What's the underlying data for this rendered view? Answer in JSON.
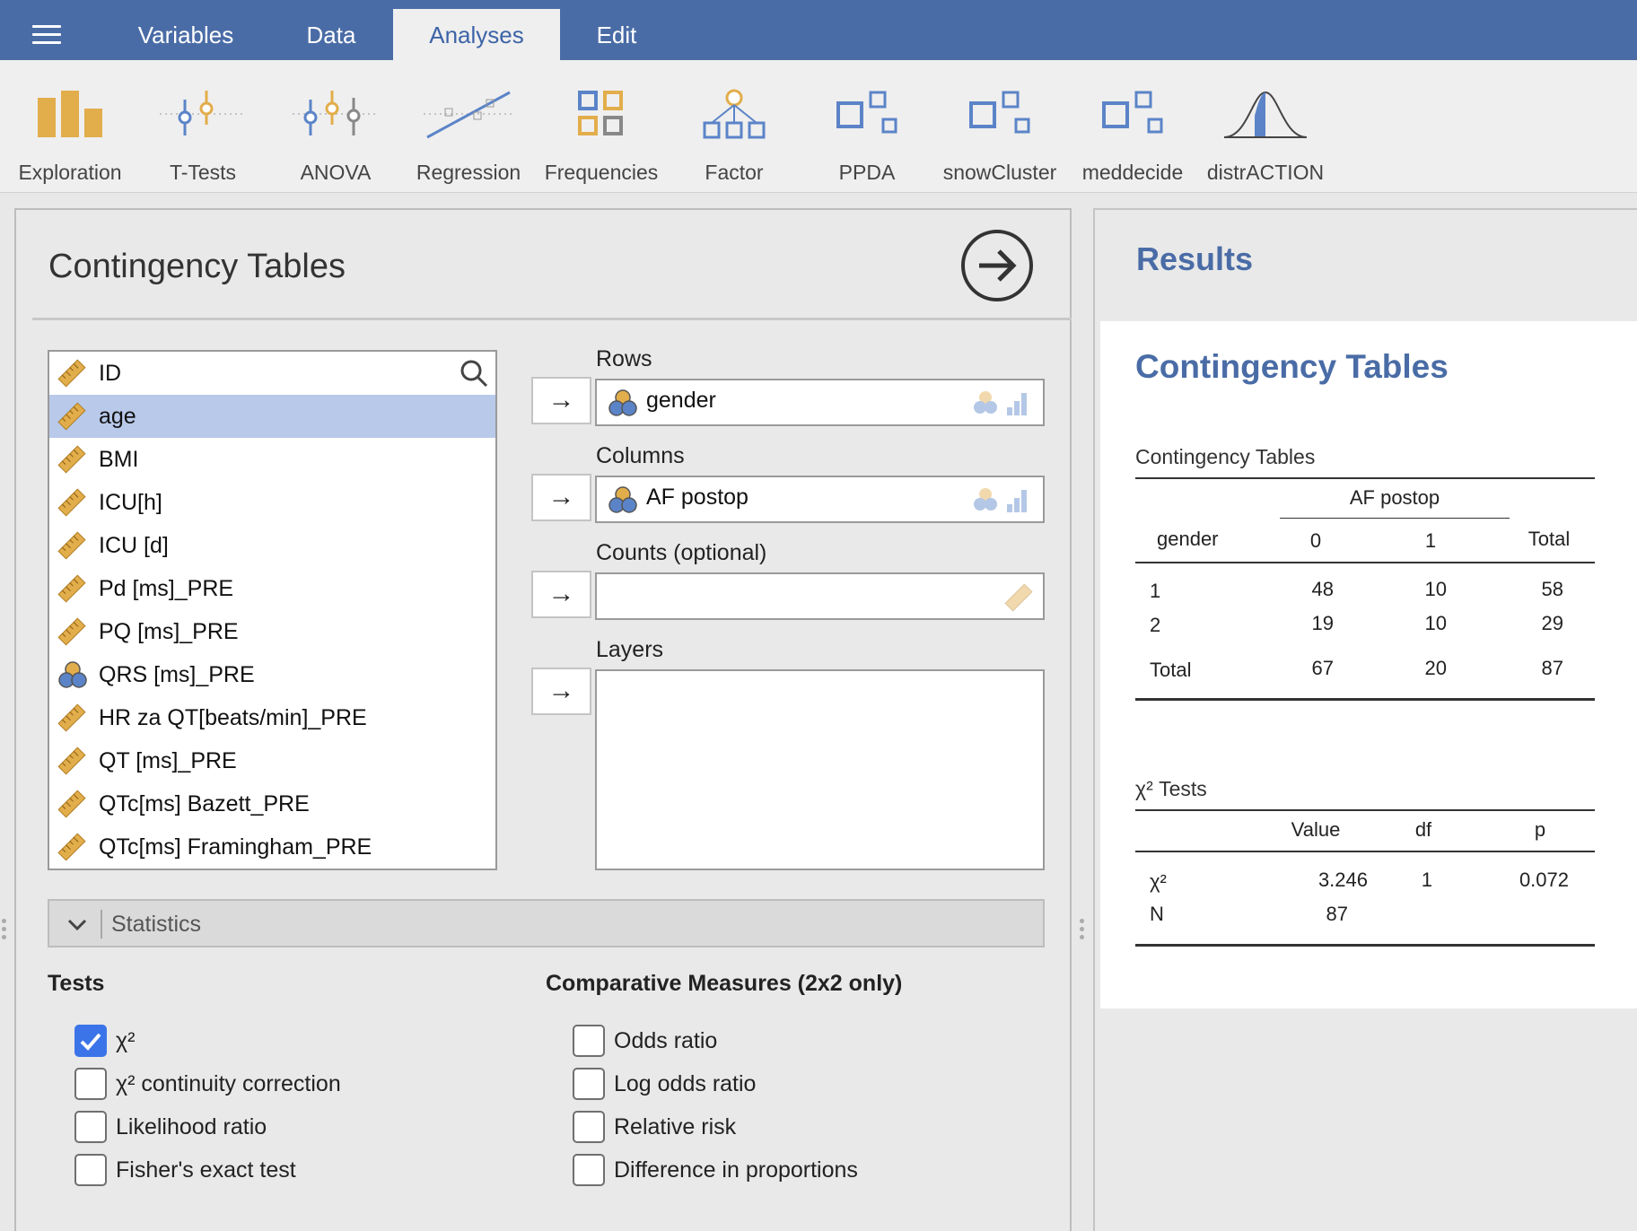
{
  "menu": {
    "tabs": [
      {
        "label": "Variables"
      },
      {
        "label": "Data"
      },
      {
        "label": "Analyses"
      },
      {
        "label": "Edit"
      }
    ]
  },
  "ribbon": {
    "buttons": [
      {
        "label": "Exploration",
        "icon": "exploration-icon"
      },
      {
        "label": "T-Tests",
        "icon": "t-tests-icon"
      },
      {
        "label": "ANOVA",
        "icon": "anova-icon"
      },
      {
        "label": "Regression",
        "icon": "regression-icon"
      },
      {
        "label": "Frequencies",
        "icon": "frequencies-icon"
      },
      {
        "label": "Factor",
        "icon": "factor-icon"
      },
      {
        "label": "PPDA",
        "icon": "module-icon"
      },
      {
        "label": "snowCluster",
        "icon": "module-icon"
      },
      {
        "label": "meddecide",
        "icon": "module-icon"
      },
      {
        "label": "distrACTION",
        "icon": "distribution-icon"
      }
    ]
  },
  "options": {
    "title": "Contingency Tables",
    "variables": [
      {
        "name": "ID",
        "type": "continuous"
      },
      {
        "name": "age",
        "type": "continuous"
      },
      {
        "name": "BMI",
        "type": "continuous"
      },
      {
        "name": "ICU[h]",
        "type": "continuous"
      },
      {
        "name": "ICU [d]",
        "type": "continuous"
      },
      {
        "name": "Pd [ms]_PRE",
        "type": "continuous"
      },
      {
        "name": "PQ [ms]_PRE",
        "type": "continuous"
      },
      {
        "name": "QRS [ms]_PRE",
        "type": "nominal"
      },
      {
        "name": "HR za QT[beats/min]_PRE",
        "type": "continuous"
      },
      {
        "name": "QT [ms]_PRE",
        "type": "continuous"
      },
      {
        "name": "QTc[ms] Bazett_PRE",
        "type": "continuous"
      },
      {
        "name": "QTc[ms] Framingham_PRE",
        "type": "continuous"
      }
    ],
    "selected_variable": "age",
    "targets": {
      "rows": {
        "label": "Rows",
        "value": "gender"
      },
      "columns": {
        "label": "Columns",
        "value": "AF postop"
      },
      "counts": {
        "label": "Counts (optional)",
        "value": ""
      },
      "layers": {
        "label": "Layers",
        "value": ""
      }
    },
    "statistics_label": "Statistics",
    "tests": {
      "heading": "Tests",
      "items": [
        {
          "label": "χ²",
          "checked": true
        },
        {
          "label": "χ² continuity correction",
          "checked": false
        },
        {
          "label": "Likelihood ratio",
          "checked": false
        },
        {
          "label": "Fisher's exact test",
          "checked": false
        }
      ]
    },
    "comparative": {
      "heading": "Comparative Measures (2x2 only)",
      "items": [
        {
          "label": "Odds ratio",
          "checked": false
        },
        {
          "label": "Log odds ratio",
          "checked": false
        },
        {
          "label": "Relative risk",
          "checked": false
        },
        {
          "label": "Difference in proportions",
          "checked": false
        }
      ]
    }
  },
  "results": {
    "heading": "Results",
    "title": "Contingency Tables",
    "contingency": {
      "caption": "Contingency Tables",
      "col_group": "AF postop",
      "row_var": "gender",
      "cols": [
        "0",
        "1",
        "Total"
      ],
      "rows": [
        {
          "label": "1",
          "values": [
            "48",
            "10",
            "58"
          ]
        },
        {
          "label": "2",
          "values": [
            "19",
            "10",
            "29"
          ]
        },
        {
          "label": "Total",
          "values": [
            "67",
            "20",
            "87"
          ]
        }
      ]
    },
    "chi_tests": {
      "caption": "χ² Tests",
      "cols": [
        "Value",
        "df",
        "p"
      ],
      "rows": [
        {
          "label": "χ²",
          "values": [
            "3.246",
            "1",
            "0.072"
          ]
        },
        {
          "label": "N",
          "values": [
            "87",
            "",
            ""
          ]
        }
      ]
    }
  },
  "colors": {
    "brand": "#4a6ca6",
    "selection": "#b8c9ea",
    "checkbox_on": "#3b74e8",
    "ruler_icon": "#e2ad4b"
  }
}
